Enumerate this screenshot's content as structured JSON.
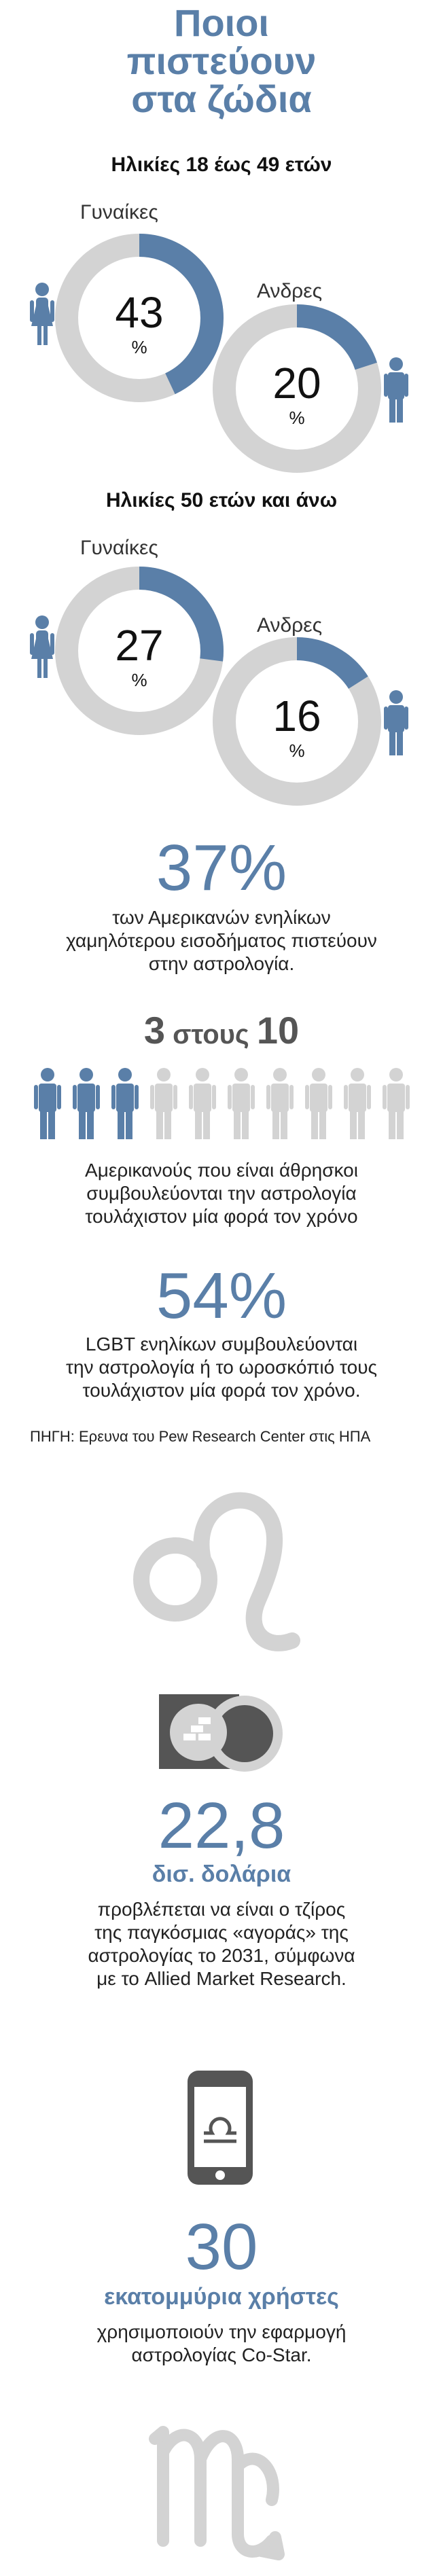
{
  "title": {
    "line1": "Ποιοι",
    "line2": "πιστεύουν",
    "line3": "στα ζώδια"
  },
  "age_groups": [
    {
      "heading": "Ηλικίες 18 έως 49 ετών",
      "women": {
        "label": "Γυναίκες",
        "value": "43",
        "unit": "%"
      },
      "men": {
        "label": "Ανδρες",
        "value": "20",
        "unit": "%"
      }
    },
    {
      "heading": "Ηλικίες 50 ετών και άνω",
      "women": {
        "label": "Γυναίκες",
        "value": "27",
        "unit": "%"
      },
      "men": {
        "label": "Ανδρες",
        "value": "16",
        "unit": "%"
      }
    }
  ],
  "chart_data": [
    {
      "type": "pie",
      "title": "Ηλικίες 18 έως 49 ετών",
      "series": [
        {
          "name": "Γυναίκες",
          "values": [
            43
          ]
        },
        {
          "name": "Ανδρες",
          "values": [
            20
          ]
        }
      ]
    },
    {
      "type": "pie",
      "title": "Ηλικίες 50 ετών και άνω",
      "series": [
        {
          "name": "Γυναίκες",
          "values": [
            27
          ]
        },
        {
          "name": "Ανδρες",
          "values": [
            16
          ]
        }
      ]
    }
  ],
  "stat_low_income": {
    "value": "37%",
    "lines": [
      "των Αμερικανών ενηλίκων",
      "χαμηλότερου εισοδήματος πιστεύουν",
      "στην αστρολογία."
    ]
  },
  "stat_three_in_ten": {
    "num1": "3",
    "mid": " στους ",
    "num2": "10",
    "highlighted": 3,
    "total": 10,
    "lines": [
      "Αμερικανούς που είναι άθρησκοι",
      "συμβουλεύονται την αστρολογία",
      "τουλάχιστον μία φορά τον χρόνο"
    ]
  },
  "stat_lgbt": {
    "value": "54%",
    "lines": [
      "LGBT ενηλίκων συμβουλεύονται",
      "την αστρολογία ή το ωροσκόπιό τους",
      "τουλάχιστον μία φορά τον χρόνο."
    ]
  },
  "source": "ΠΗΓΗ: Ερευνα του Pew Research Center στις ΗΠΑ",
  "stat_market": {
    "value": "22,8",
    "unit": "δισ. δολάρια",
    "lines": [
      "προβλέπεται να είναι ο τζίρος",
      "της παγκόσμιας «αγοράς» της",
      "αστρολογίας το 2031, σύμφωνα",
      "με το Allied Market Research."
    ]
  },
  "stat_users": {
    "value": "30",
    "unit": "εκατομμύρια χρήστες",
    "lines": [
      "χρησιμοποιούν την εφαρμογή",
      "αστρολογίας Co-Star."
    ]
  },
  "colors": {
    "accent": "#5a7fa8",
    "ring": "#d3d3d3",
    "dark": "#555555"
  }
}
